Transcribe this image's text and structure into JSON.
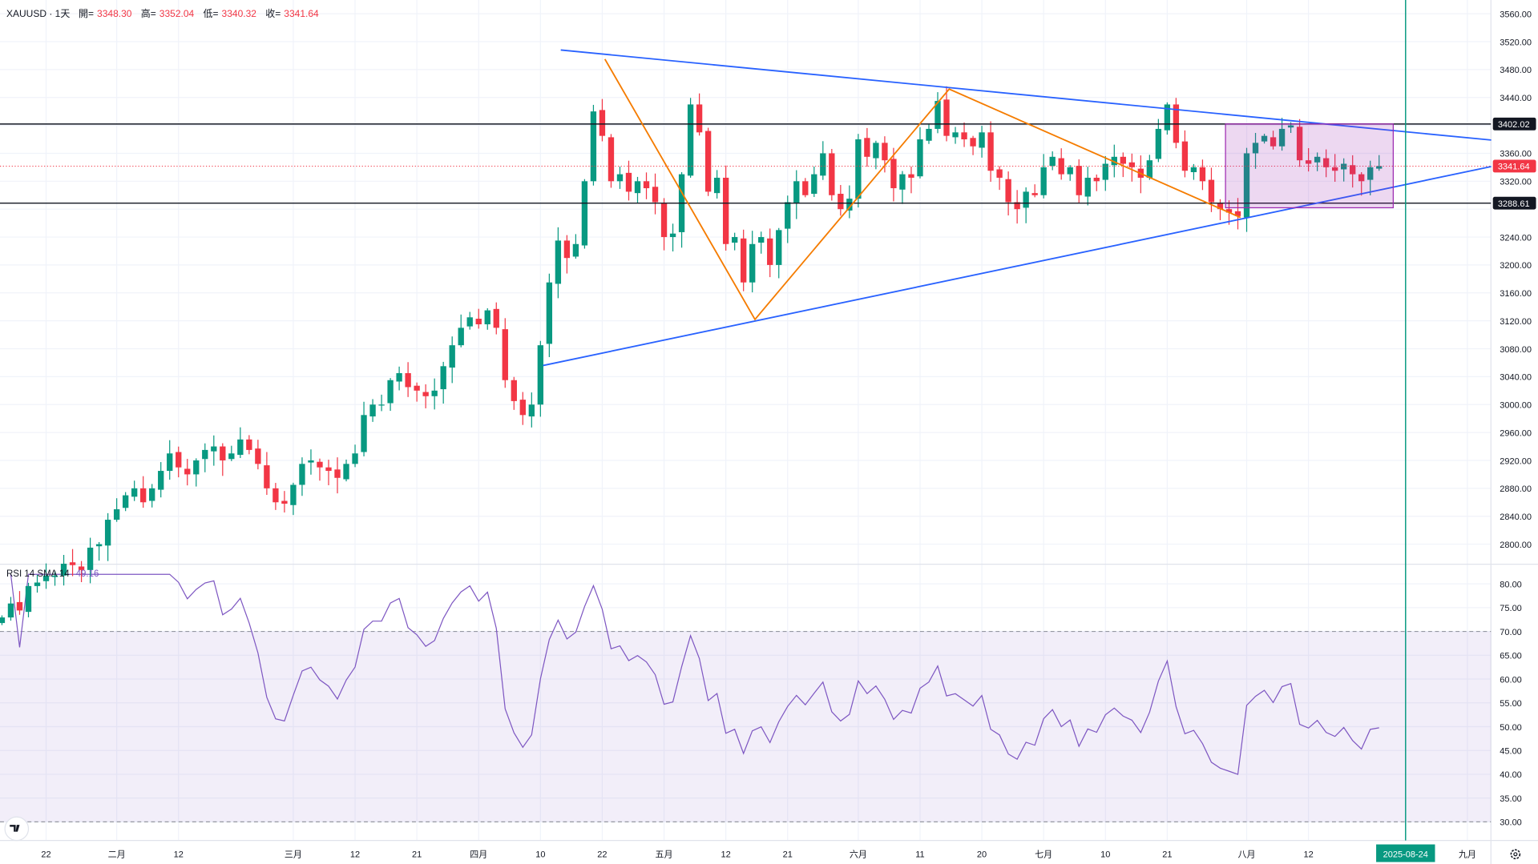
{
  "legend": {
    "symbol": "XAUUSD · 1天",
    "open_label": "開=",
    "open": "3348.30",
    "high_label": "高=",
    "high": "3352.04",
    "low_label": "低=",
    "low": "3340.32",
    "close_label": "收=",
    "close": "3341.64"
  },
  "rsi_legend": {
    "label": "RSI 14 SMA 14",
    "value": "49.16"
  },
  "colors": {
    "up": "#089981",
    "down": "#f23645",
    "trend": "#2962ff",
    "zigzag": "#f57c00",
    "box": "#9c27b0",
    "rsi": "#7e57c2",
    "vline": "#089981"
  },
  "chart_data": {
    "type": "candlestick",
    "title": "XAUUSD 1D",
    "first_index": -5,
    "close": [
      2695,
      2715,
      2705,
      2740,
      2745,
      2755,
      2755,
      2772,
      2770,
      2763,
      2795,
      2800,
      2835,
      2850,
      2870,
      2880,
      2860,
      2880,
      2905,
      2930,
      2910,
      2900,
      2920,
      2935,
      2940,
      2920,
      2930,
      2950,
      2935,
      2915,
      2880,
      2860,
      2858,
      2885,
      2915,
      2920,
      2910,
      2905,
      2895,
      2915,
      2930,
      2985,
      3000,
      3000,
      3035,
      3045,
      3025,
      3020,
      3012,
      3020,
      3055,
      3085,
      3110,
      3125,
      3115,
      3135,
      3110,
      3035,
      3005,
      2985,
      3000,
      3085,
      3175,
      3235,
      3210,
      3230,
      3320,
      3420,
      3385,
      3320,
      3330,
      3305,
      3320,
      3310,
      3290,
      3240,
      3245,
      3330,
      3430,
      3390,
      3305,
      3325,
      3230,
      3240,
      3175,
      3230,
      3240,
      3200,
      3250,
      3290,
      3320,
      3300,
      3330,
      3360,
      3300,
      3280,
      3295,
      3380,
      3355,
      3375,
      3350,
      3310,
      3330,
      3325,
      3380,
      3395,
      3435,
      3385,
      3390,
      3380,
      3370,
      3390,
      3335,
      3325,
      3290,
      3280,
      3305,
      3300,
      3340,
      3355,
      3330,
      3340,
      3300,
      3325,
      3320,
      3345,
      3355,
      3345,
      3340,
      3325,
      3350,
      3395,
      3430,
      3375,
      3335,
      3340,
      3320,
      3290,
      3280,
      3275,
      3270,
      3360,
      3375,
      3385,
      3370,
      3395,
      3400,
      3350,
      3345,
      3355,
      3340,
      3335,
      3345,
      3330,
      3320,
      3340,
      3341.64
    ],
    "price_axis": {
      "min": 2770,
      "max": 3580,
      "ticks": [
        "3560.00",
        "3520.00",
        "3480.00",
        "3440.00",
        "3360.00",
        "3320.00",
        "3240.00",
        "3200.00",
        "3160.00",
        "3120.00",
        "3080.00",
        "3040.00",
        "3000.00",
        "2960.00",
        "2920.00",
        "2880.00",
        "2840.00",
        "2800.00"
      ]
    },
    "price_labels": [
      {
        "text": "3402.02",
        "value": 3402.02,
        "kind": "line"
      },
      {
        "text": "3341.64",
        "value": 3341.64,
        "kind": "last"
      },
      {
        "text": "3288.61",
        "value": 3288.61,
        "kind": "line"
      }
    ],
    "time_labels": [
      {
        "text": "22",
        "index": 0
      },
      {
        "text": "二月",
        "index": 8
      },
      {
        "text": "12",
        "index": 15
      },
      {
        "text": "三月",
        "index": 28
      },
      {
        "text": "12",
        "index": 35
      },
      {
        "text": "21",
        "index": 42
      },
      {
        "text": "四月",
        "index": 49
      },
      {
        "text": "10",
        "index": 56
      },
      {
        "text": "22",
        "index": 63
      },
      {
        "text": "五月",
        "index": 70
      },
      {
        "text": "12",
        "index": 77
      },
      {
        "text": "21",
        "index": 84
      },
      {
        "text": "六月",
        "index": 92
      },
      {
        "text": "11",
        "index": 99
      },
      {
        "text": "20",
        "index": 106
      },
      {
        "text": "七月",
        "index": 113
      },
      {
        "text": "10",
        "index": 120
      },
      {
        "text": "21",
        "index": 127
      },
      {
        "text": "八月",
        "index": 136
      },
      {
        "text": "12",
        "index": 143
      },
      {
        "text": "九月",
        "index": 161
      }
    ],
    "cursor_date": {
      "text": "2025-08-24",
      "index": 154
    },
    "rsi_axis": {
      "min": 25,
      "max": 83,
      "ticks": [
        "80.00",
        "75.00",
        "70.00",
        "65.00",
        "60.00",
        "55.00",
        "50.00",
        "45.00",
        "40.00",
        "35.00",
        "30.00"
      ],
      "upper_band": 70,
      "lower_band": 30
    },
    "annotations": {
      "horizontal_lines": [
        3402.02,
        3288.61
      ],
      "trendlines": [
        {
          "from": [
            58.3,
            3508
          ],
          "to": [
            163.7,
            3379
          ]
        },
        {
          "from": [
            56.3,
            3056
          ],
          "to": [
            163.7,
            3341
          ]
        }
      ],
      "zigzag": [
        [
          63.3,
          3495
        ],
        [
          80.3,
          3122
        ],
        [
          102.3,
          3452
        ],
        [
          135.3,
          3268
        ]
      ],
      "box": {
        "from": [
          133.6,
          3402
        ],
        "to": [
          152.6,
          3282
        ]
      }
    }
  }
}
